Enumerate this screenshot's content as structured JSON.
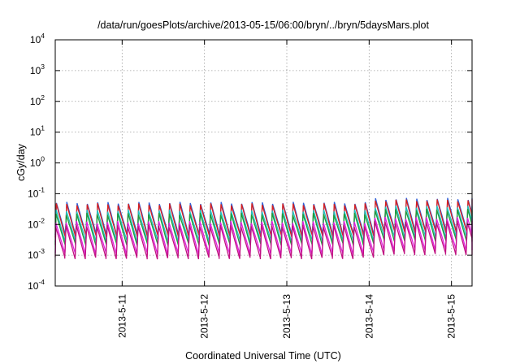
{
  "chart_data": {
    "type": "line",
    "title": "/data/run/goesPlots/archive/2013-05-15/06:00/bryn/../bryn/5daysMars.plot",
    "xlabel": "Coordinated Universal Time (UTC)",
    "ylabel": "cGy/day",
    "yscale": "log",
    "ylim": [
      0.0001,
      10000
    ],
    "xlim": [
      "2013-05-10T04:30",
      "2013-05-15T06:00"
    ],
    "y_ticks": [
      {
        "base": "10",
        "exp": "-4",
        "value": 0.0001
      },
      {
        "base": "10",
        "exp": "-3",
        "value": 0.001
      },
      {
        "base": "10",
        "exp": "-2",
        "value": 0.01
      },
      {
        "base": "10",
        "exp": "-1",
        "value": 0.1
      },
      {
        "base": "10",
        "exp": "0",
        "value": 1
      },
      {
        "base": "10",
        "exp": "1",
        "value": 10
      },
      {
        "base": "10",
        "exp": "2",
        "value": 100
      },
      {
        "base": "10",
        "exp": "3",
        "value": 1000
      },
      {
        "base": "10",
        "exp": "4",
        "value": 10000
      }
    ],
    "x_ticks": [
      {
        "label": "2013-5-11",
        "value": "2013-05-11T00:00"
      },
      {
        "label": "2013-5-12",
        "value": "2013-05-12T00:00"
      },
      {
        "label": "2013-5-13",
        "value": "2013-05-13T00:00"
      },
      {
        "label": "2013-5-14",
        "value": "2013-05-14T00:00"
      },
      {
        "label": "2013-5-15",
        "value": "2013-05-15T00:00"
      }
    ],
    "grid": true,
    "legend": "none",
    "cycle_hours": 3,
    "series": [
      {
        "color": "#2f5fd8",
        "peak": 0.05,
        "trough": 0.0045
      },
      {
        "color": "#d62020",
        "peak": 0.045,
        "trough": 0.004
      },
      {
        "color": "#20c0c0",
        "peak": 0.028,
        "trough": 0.0028
      },
      {
        "color": "#1f9a3a",
        "peak": 0.022,
        "trough": 0.0022
      },
      {
        "color": "#e020e0",
        "peak": 0.012,
        "trough": 0.0011
      },
      {
        "color": "#c01080",
        "peak": 0.009,
        "trough": 0.0008
      }
    ],
    "late_rise": {
      "from": "2013-05-14T00:00",
      "factor": 1.35
    }
  }
}
